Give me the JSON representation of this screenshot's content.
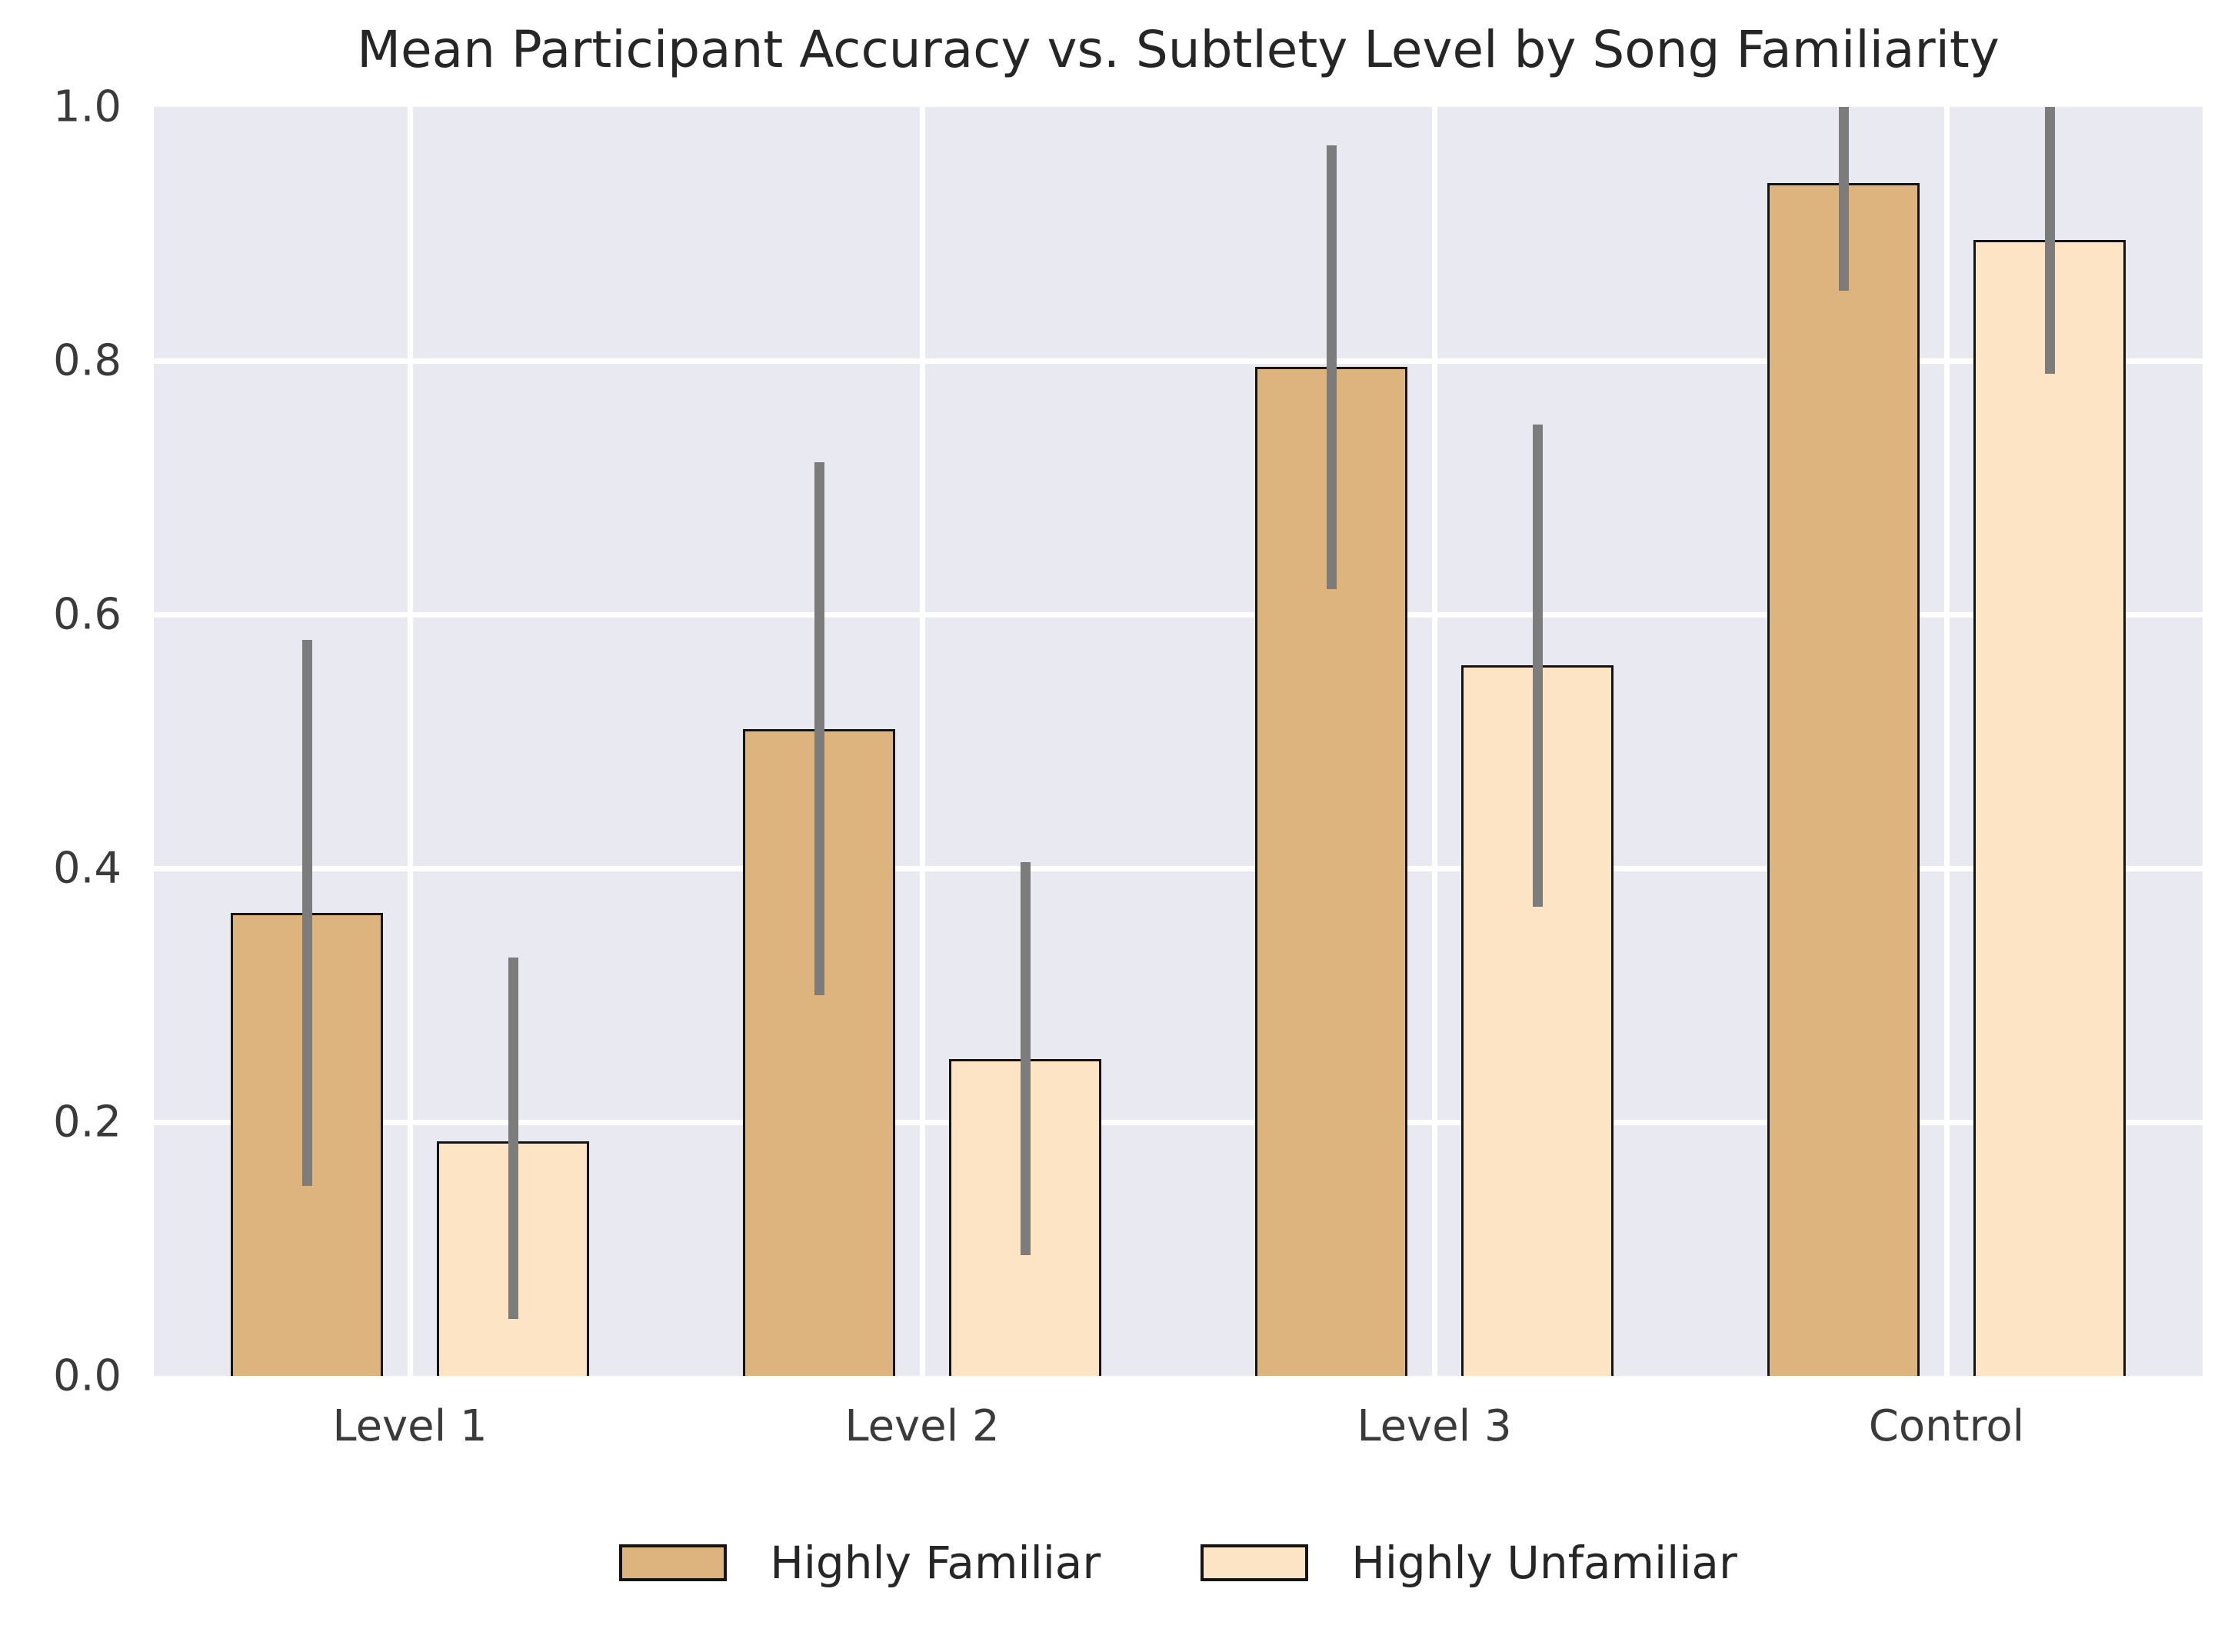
{
  "chart_data": {
    "type": "bar",
    "title": "Mean Participant Accuracy vs. Subtlety Level by Song Familiarity",
    "xlabel": "",
    "ylabel": "",
    "categories": [
      "Level 1",
      "Level 2",
      "Level 3",
      "Control"
    ],
    "series": [
      {
        "name": "Highly Familiar",
        "color": "#deb47e",
        "values": [
          0.365,
          0.51,
          0.795,
          0.94
        ],
        "err_low": [
          0.15,
          0.3,
          0.62,
          0.855
        ],
        "err_high": [
          0.58,
          0.72,
          0.97,
          1.03
        ]
      },
      {
        "name": "Highly Unfamiliar",
        "color": "#fde4c4",
        "values": [
          0.185,
          0.25,
          0.56,
          0.895
        ],
        "err_low": [
          0.045,
          0.095,
          0.37,
          0.79
        ],
        "err_high": [
          0.33,
          0.405,
          0.75,
          1.0
        ]
      }
    ],
    "ylim": [
      0.0,
      1.0
    ],
    "yticks": [
      "0.0",
      "0.2",
      "0.4",
      "0.6",
      "0.8",
      "1.0"
    ],
    "grid": true,
    "grid_color": "#ffffff",
    "plot_background": "#e9e9f1",
    "error_bar_color": "#7c7c7c",
    "bar_edge_color": "#141414",
    "text_color": "#262626",
    "tick_label_color": "#3a3a3a",
    "legend_position": "bottom"
  }
}
